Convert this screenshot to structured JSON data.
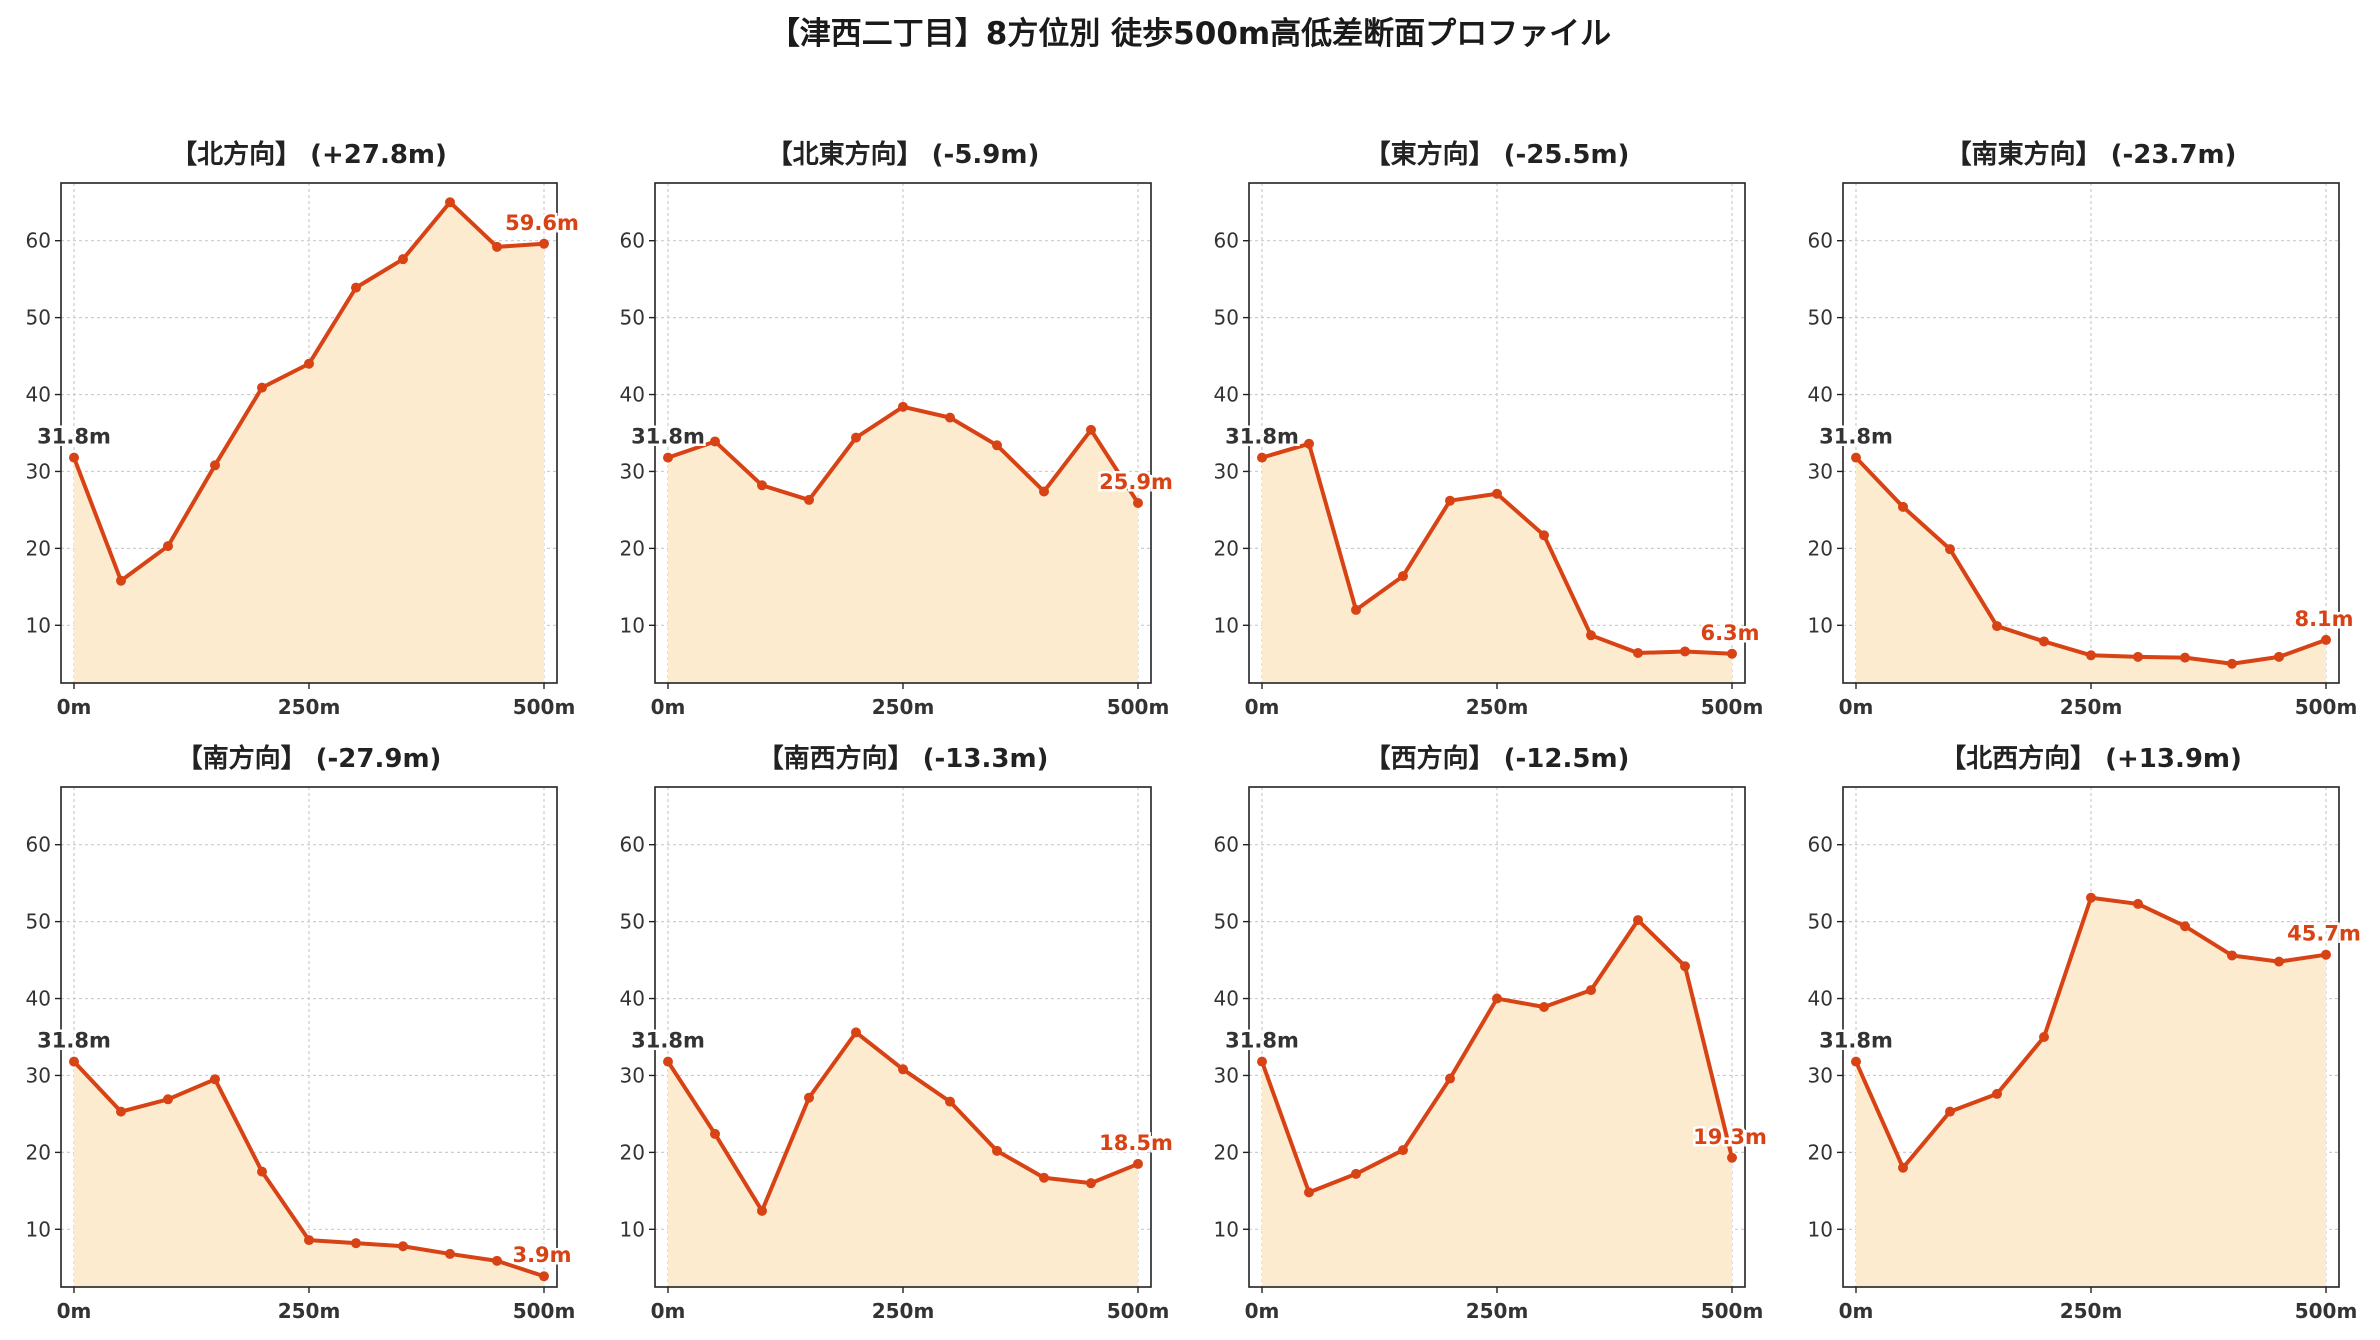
{
  "title": "【津西二丁目】8方位別 徒歩500m高低差断面プロファイル",
  "colors": {
    "line": "#d84315",
    "fill": "#fdebd0",
    "grid": "#cccccc",
    "axis": "#222222"
  },
  "chart_data": [
    {
      "type": "area",
      "title": "【北方向】 (+27.8m)",
      "x": [
        0,
        50,
        100,
        150,
        200,
        250,
        300,
        350,
        400,
        450,
        500
      ],
      "values": [
        31.8,
        15.8,
        20.3,
        30.8,
        40.9,
        44.0,
        53.9,
        57.6,
        65.0,
        59.2,
        59.6
      ],
      "start_label": "31.8m",
      "end_label": "59.6m",
      "xticks": [
        "0m",
        "250m",
        "500m"
      ],
      "yticks": [
        10,
        20,
        30,
        40,
        50,
        60
      ],
      "ylim": [
        2.5,
        67.5
      ],
      "grid": true
    },
    {
      "type": "area",
      "title": "【北東方向】 (-5.9m)",
      "x": [
        0,
        50,
        100,
        150,
        200,
        250,
        300,
        350,
        400,
        450,
        500
      ],
      "values": [
        31.8,
        33.9,
        28.2,
        26.3,
        34.4,
        38.4,
        37.0,
        33.4,
        27.4,
        35.4,
        25.9
      ],
      "start_label": "31.8m",
      "end_label": "25.9m",
      "xticks": [
        "0m",
        "250m",
        "500m"
      ],
      "yticks": [
        10,
        20,
        30,
        40,
        50,
        60
      ],
      "ylim": [
        2.5,
        67.5
      ],
      "grid": true
    },
    {
      "type": "area",
      "title": "【東方向】 (-25.5m)",
      "x": [
        0,
        50,
        100,
        150,
        200,
        250,
        300,
        350,
        400,
        450,
        500
      ],
      "values": [
        31.8,
        33.6,
        12.0,
        16.4,
        26.2,
        27.1,
        21.7,
        8.7,
        6.4,
        6.6,
        6.3
      ],
      "start_label": "31.8m",
      "end_label": "6.3m",
      "xticks": [
        "0m",
        "250m",
        "500m"
      ],
      "yticks": [
        10,
        20,
        30,
        40,
        50,
        60
      ],
      "ylim": [
        2.5,
        67.5
      ],
      "grid": true
    },
    {
      "type": "area",
      "title": "【南東方向】 (-23.7m)",
      "x": [
        0,
        50,
        100,
        150,
        200,
        250,
        300,
        350,
        400,
        450,
        500
      ],
      "values": [
        31.8,
        25.4,
        19.9,
        9.9,
        7.9,
        6.1,
        5.9,
        5.8,
        5.0,
        5.9,
        8.1
      ],
      "start_label": "31.8m",
      "end_label": "8.1m",
      "xticks": [
        "0m",
        "250m",
        "500m"
      ],
      "yticks": [
        10,
        20,
        30,
        40,
        50,
        60
      ],
      "ylim": [
        2.5,
        67.5
      ],
      "grid": true
    },
    {
      "type": "area",
      "title": "【南方向】 (-27.9m)",
      "x": [
        0,
        50,
        100,
        150,
        200,
        250,
        300,
        350,
        400,
        450,
        500
      ],
      "values": [
        31.8,
        25.3,
        26.9,
        29.5,
        17.5,
        8.6,
        8.2,
        7.8,
        6.8,
        5.9,
        3.9
      ],
      "start_label": "31.8m",
      "end_label": "3.9m",
      "xticks": [
        "0m",
        "250m",
        "500m"
      ],
      "yticks": [
        10,
        20,
        30,
        40,
        50,
        60
      ],
      "ylim": [
        2.5,
        67.5
      ],
      "grid": true
    },
    {
      "type": "area",
      "title": "【南西方向】 (-13.3m)",
      "x": [
        0,
        50,
        100,
        150,
        200,
        250,
        300,
        350,
        400,
        450,
        500
      ],
      "values": [
        31.8,
        22.4,
        12.4,
        27.1,
        35.6,
        30.8,
        26.6,
        20.2,
        16.7,
        16.0,
        18.5
      ],
      "start_label": "31.8m",
      "end_label": "18.5m",
      "xticks": [
        "0m",
        "250m",
        "500m"
      ],
      "yticks": [
        10,
        20,
        30,
        40,
        50,
        60
      ],
      "ylim": [
        2.5,
        67.5
      ],
      "grid": true
    },
    {
      "type": "area",
      "title": "【西方向】 (-12.5m)",
      "x": [
        0,
        50,
        100,
        150,
        200,
        250,
        300,
        350,
        400,
        450,
        500
      ],
      "values": [
        31.8,
        14.8,
        17.2,
        20.3,
        29.6,
        40.0,
        38.9,
        41.1,
        50.2,
        44.2,
        19.3
      ],
      "start_label": "31.8m",
      "end_label": "19.3m",
      "xticks": [
        "0m",
        "250m",
        "500m"
      ],
      "yticks": [
        10,
        20,
        30,
        40,
        50,
        60
      ],
      "ylim": [
        2.5,
        67.5
      ],
      "grid": true
    },
    {
      "type": "area",
      "title": "【北西方向】 (+13.9m)",
      "x": [
        0,
        50,
        100,
        150,
        200,
        250,
        300,
        350,
        400,
        450,
        500
      ],
      "values": [
        31.8,
        18.0,
        25.3,
        27.6,
        35.0,
        53.1,
        52.3,
        49.4,
        45.6,
        44.8,
        45.7
      ],
      "start_label": "31.8m",
      "end_label": "45.7m",
      "xticks": [
        "0m",
        "250m",
        "500m"
      ],
      "yticks": [
        10,
        20,
        30,
        40,
        50,
        60
      ],
      "ylim": [
        2.5,
        67.5
      ],
      "grid": true
    }
  ]
}
